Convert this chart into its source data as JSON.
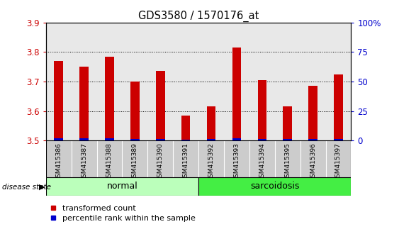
{
  "title": "GDS3580 / 1570176_at",
  "samples": [
    "GSM415386",
    "GSM415387",
    "GSM415388",
    "GSM415389",
    "GSM415390",
    "GSM415391",
    "GSM415392",
    "GSM415393",
    "GSM415394",
    "GSM415395",
    "GSM415396",
    "GSM415397"
  ],
  "transformed_counts": [
    3.77,
    3.75,
    3.785,
    3.7,
    3.735,
    3.585,
    3.615,
    3.815,
    3.705,
    3.615,
    3.685,
    3.725
  ],
  "percentile_ranks": [
    2.0,
    2.0,
    2.0,
    1.5,
    1.5,
    1.0,
    1.5,
    2.0,
    1.5,
    1.5,
    1.5,
    1.5
  ],
  "groups": [
    "normal",
    "normal",
    "normal",
    "normal",
    "normal",
    "normal",
    "sarcoidosis",
    "sarcoidosis",
    "sarcoidosis",
    "sarcoidosis",
    "sarcoidosis",
    "sarcoidosis"
  ],
  "normal_color": "#BBFFBB",
  "sarcoidosis_color": "#44EE44",
  "ylim_left": [
    3.5,
    3.9
  ],
  "ylim_right": [
    0,
    100
  ],
  "yticks_left": [
    3.5,
    3.6,
    3.7,
    3.8,
    3.9
  ],
  "yticks_right": [
    0,
    25,
    50,
    75,
    100
  ],
  "bar_color_red": "#CC0000",
  "bar_color_blue": "#0000CC",
  "bar_width": 0.35,
  "grid_color": "black",
  "tick_label_color_left": "#CC0000",
  "tick_label_color_right": "#0000CC",
  "legend_red_label": "transformed count",
  "legend_blue_label": "percentile rank within the sample",
  "disease_state_label": "disease state",
  "normal_label": "normal",
  "sarcoidosis_label": "sarcoidosis",
  "xtick_bg_color": "#CCCCCC",
  "plot_area_bg": "#FFFFFF"
}
